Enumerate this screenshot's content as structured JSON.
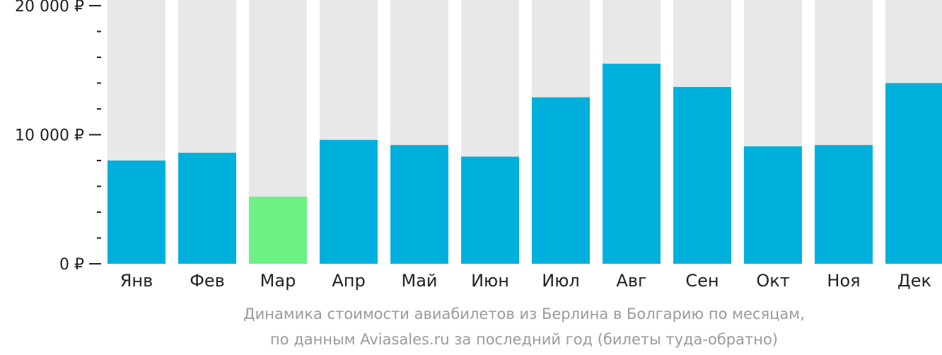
{
  "chart_data": {
    "type": "bar",
    "categories": [
      "Янв",
      "Фев",
      "Мар",
      "Апр",
      "Май",
      "Июн",
      "Июл",
      "Авг",
      "Сен",
      "Окт",
      "Ноя",
      "Дек"
    ],
    "values": [
      8000,
      8600,
      5200,
      9600,
      9200,
      8300,
      12900,
      15500,
      13700,
      9100,
      9200,
      14000
    ],
    "ylim": [
      0,
      20000
    ],
    "y_ticks": [
      {
        "value": 0,
        "label": "0 ₽"
      },
      {
        "value": 10000,
        "label": "10 000 ₽"
      },
      {
        "value": 20000,
        "label": "20 000 ₽"
      }
    ],
    "y_minor_step": 2000,
    "highlight_index": 2,
    "caption_line1": "Динамика стоимости авиабилетов из Берлина в Болгарию по месяцам,",
    "caption_line2": "по данным Aviasales.ru за последний год (билеты туда-обратно)"
  },
  "colors": {
    "bar": "#00b0dc",
    "bar_highlight": "#6cf185",
    "bar_background": "#e8e8e8",
    "axis": "#222222",
    "caption": "#9a9a9a"
  }
}
